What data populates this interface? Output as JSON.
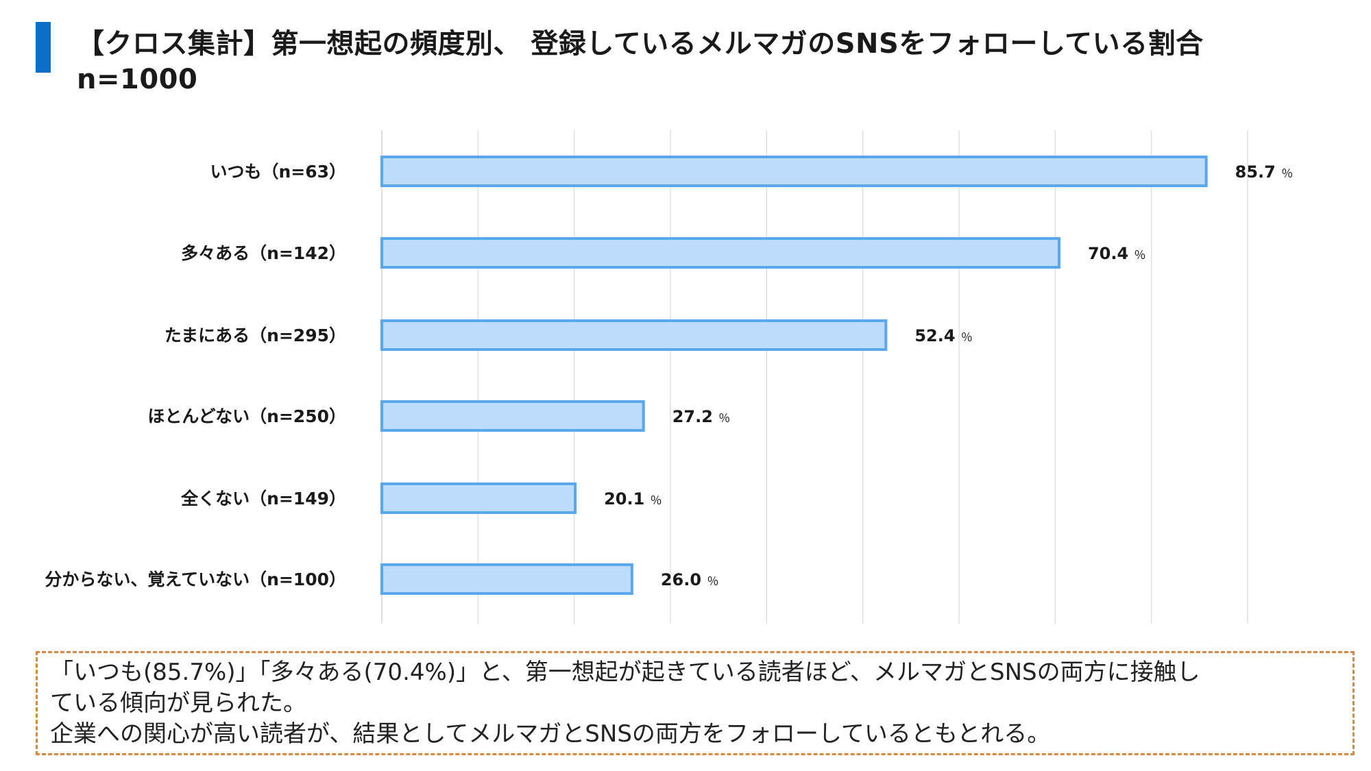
{
  "title": {
    "line1": "【クロス集計】第一想起の頻度別、 登録しているメルマガのSNSをフォローしている割合",
    "line2": "n=1000"
  },
  "chart_data": {
    "type": "bar",
    "orientation": "horizontal",
    "categories": [
      "いつも（n=63）",
      "多々ある（n=142）",
      "たまにある（n=295）",
      "ほとんどない（n=250）",
      "全くない（n=149）",
      "分からない、覚えていない（n=100）"
    ],
    "values": [
      85.7,
      70.4,
      52.4,
      27.2,
      20.1,
      26.0
    ],
    "value_labels": [
      "85.7",
      "70.4",
      "52.4",
      "27.2",
      "20.1",
      "26.0"
    ],
    "unit_label": "％",
    "xlim": [
      0,
      90
    ],
    "x_gridline_step": 10,
    "grid": true,
    "show_tick_labels": false,
    "colors": {
      "bar_fill": "#bddcfb",
      "bar_stroke": "#5aa7ec",
      "grid": "#d9d9d9"
    }
  },
  "note": {
    "lines": [
      "「いつも(85.7%)」「多々ある(70.4%)」と、第一想起が起きている読者ほど、メルマガとSNSの両方に接触し",
      "ている傾向が見られた。",
      "企業への関心が高い読者が、結果としてメルマガとSNSの両方をフォローしているともとれる。"
    ]
  }
}
